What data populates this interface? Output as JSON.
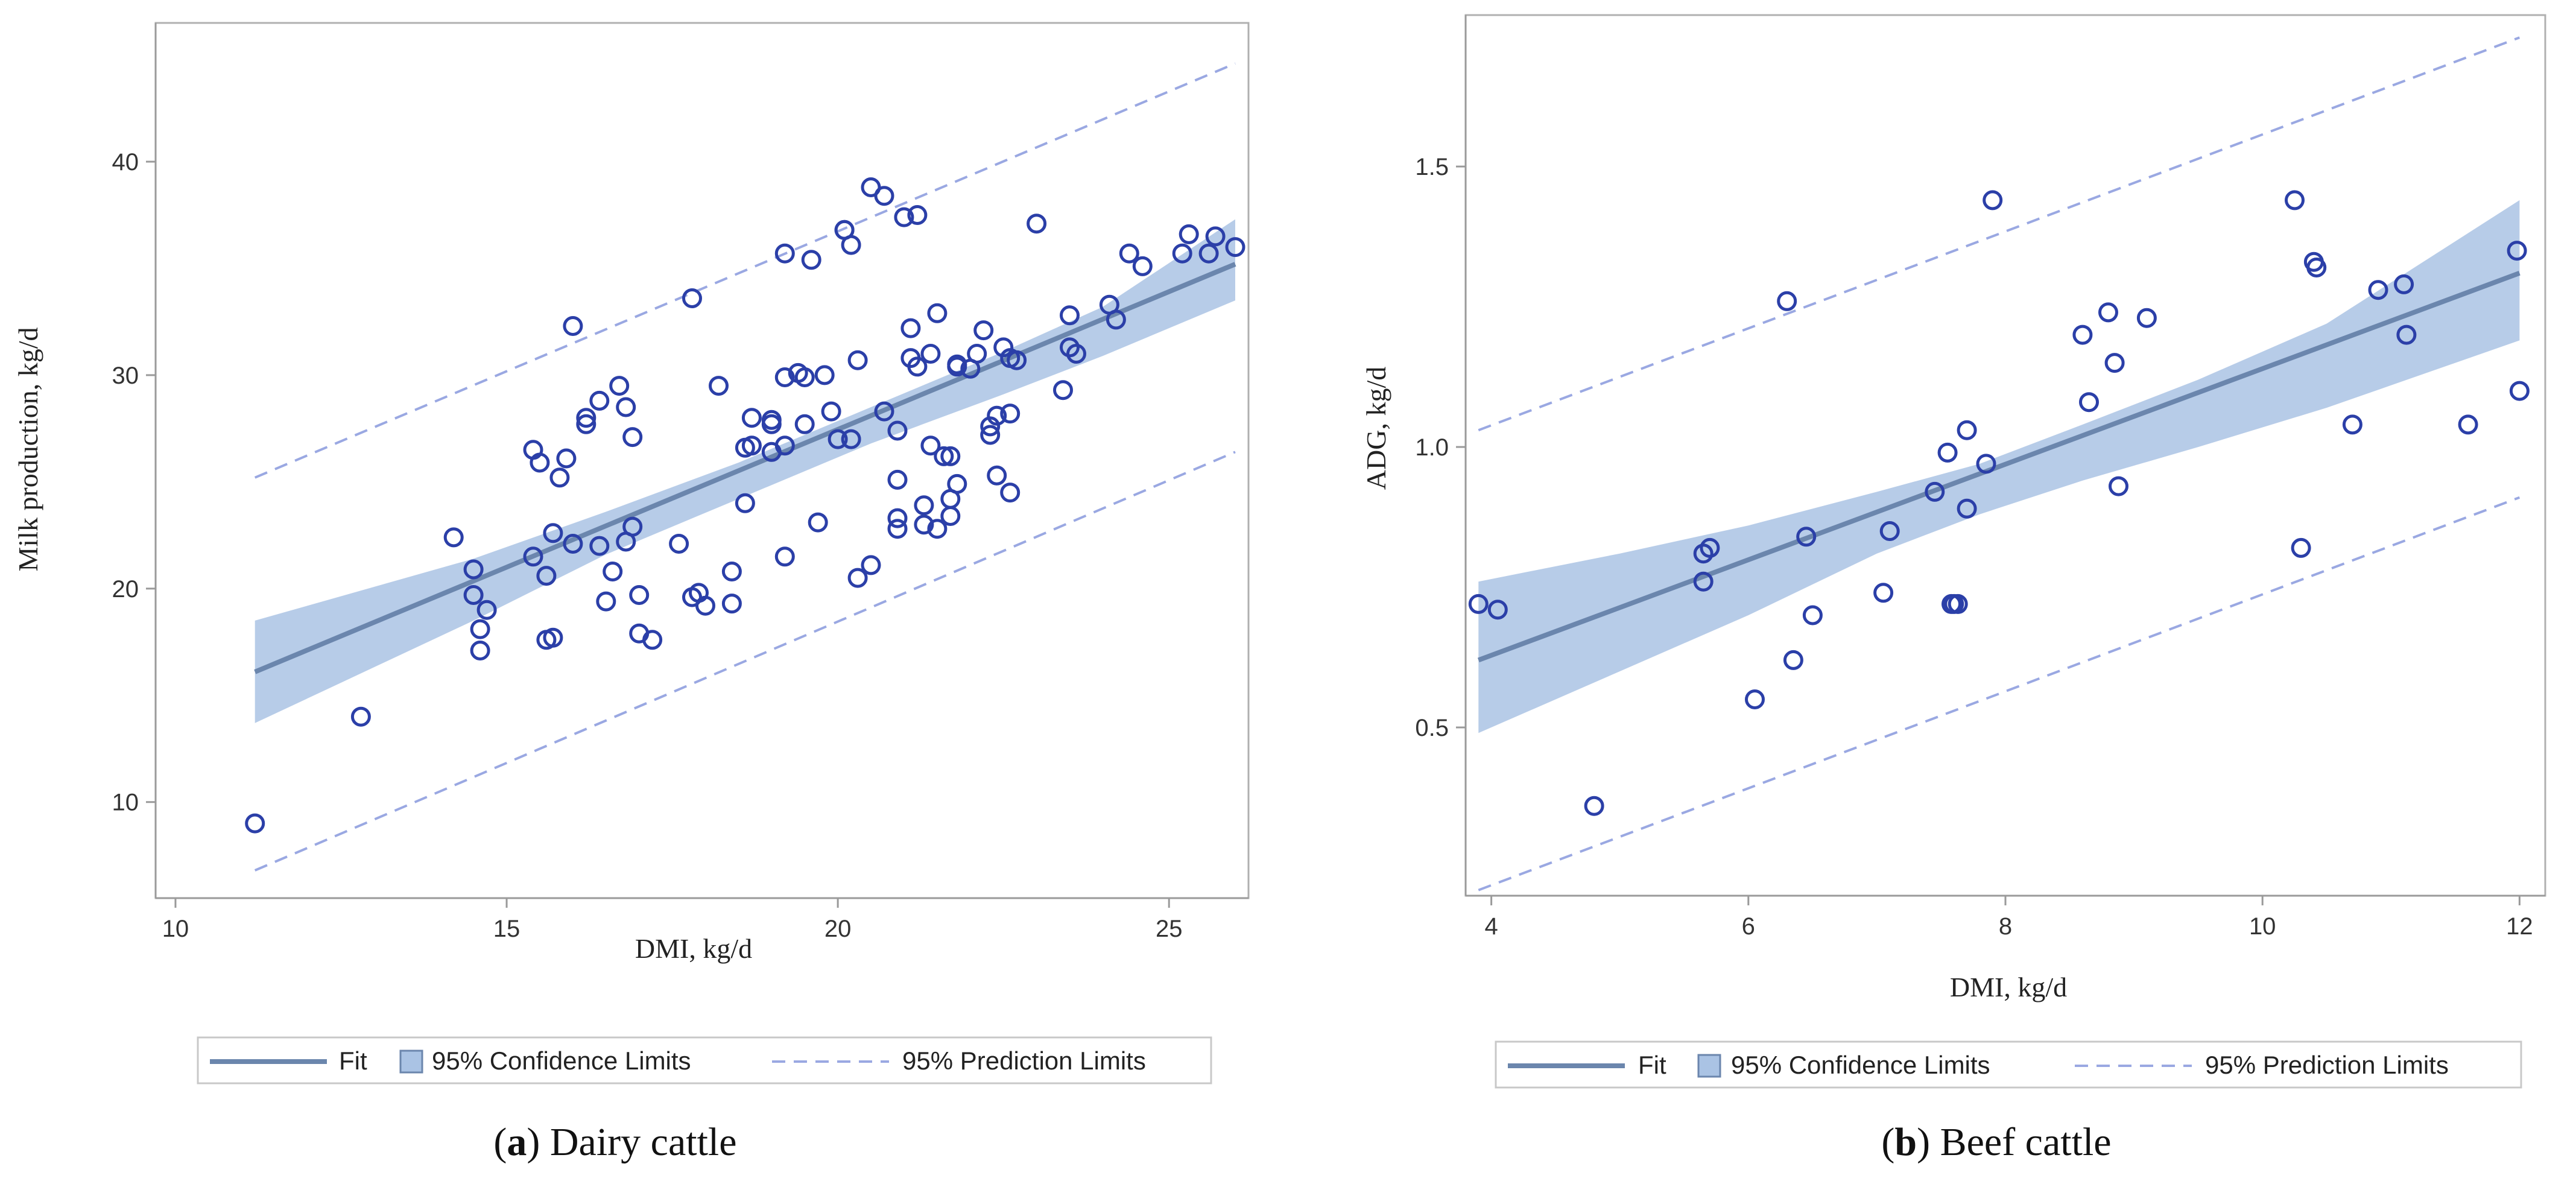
{
  "colors": {
    "points": "#2b3fa8",
    "fit": "#6b86ad",
    "confidence_band": "#aac3e4",
    "prediction": "#9aa8e2"
  },
  "panels": [
    {
      "caption_letter": "a",
      "caption_text": " Dairy cattle",
      "legend": {
        "fit": "Fit",
        "confidence": "95% Confidence Limits",
        "prediction": "95% Prediction Limits"
      }
    },
    {
      "caption_letter": "b",
      "caption_text": " Beef cattle",
      "legend": {
        "fit": "Fit",
        "confidence": "95% Confidence Limits",
        "prediction": "95% Prediction Limits"
      }
    }
  ],
  "chart_data": [
    {
      "type": "scatter",
      "title": "Dairy cattle",
      "xlabel": "DMI, kg/d",
      "ylabel": "Milk production, kg/d",
      "xlim": [
        9.7,
        26.2
      ],
      "ylim": [
        5.5,
        46.5
      ],
      "xticks": [
        10,
        15,
        20,
        25
      ],
      "yticks": [
        10,
        20,
        30,
        40
      ],
      "grid": false,
      "legend_position": "bottom",
      "fit": {
        "x": [
          11.2,
          26.0
        ],
        "y": [
          16.1,
          35.2
        ]
      },
      "confidence_band": {
        "x": [
          11.2,
          14.5,
          16.5,
          18.5,
          20.5,
          22.5,
          24.0,
          26.0
        ],
        "lower": [
          13.7,
          18.5,
          21.6,
          24.2,
          26.8,
          29.1,
          30.9,
          33.5
        ],
        "upper": [
          18.5,
          21.4,
          23.6,
          25.9,
          28.5,
          31.1,
          33.2,
          37.3
        ]
      },
      "prediction_upper": {
        "x": [
          11.2,
          26.0
        ],
        "y": [
          25.2,
          44.6
        ]
      },
      "prediction_lower": {
        "x": [
          11.2,
          26.0
        ],
        "y": [
          6.8,
          26.4
        ]
      },
      "points": {
        "x": [
          11.2,
          12.8,
          14.2,
          14.5,
          14.5,
          14.6,
          14.6,
          14.7,
          15.4,
          15.4,
          15.5,
          15.6,
          15.6,
          15.7,
          15.7,
          15.8,
          15.9,
          16.0,
          16.0,
          16.2,
          16.2,
          16.4,
          16.4,
          16.5,
          16.6,
          16.7,
          16.8,
          16.8,
          16.9,
          16.9,
          17.0,
          17.0,
          17.2,
          17.6,
          17.8,
          17.8,
          17.9,
          18.0,
          18.2,
          18.4,
          18.4,
          18.6,
          18.6,
          18.7,
          18.7,
          19.0,
          19.0,
          19.0,
          19.2,
          19.2,
          19.2,
          19.2,
          19.4,
          19.5,
          19.5,
          19.6,
          19.7,
          19.8,
          19.9,
          20.0,
          20.1,
          20.1,
          20.2,
          20.2,
          20.3,
          20.3,
          20.5,
          20.5,
          20.7,
          20.7,
          20.9,
          20.9,
          20.9,
          20.9,
          21.0,
          21.1,
          21.1,
          21.2,
          21.2,
          21.3,
          21.3,
          21.4,
          21.4,
          21.5,
          21.5,
          21.6,
          21.7,
          21.7,
          21.7,
          21.8,
          21.8,
          21.8,
          22.0,
          22.1,
          22.2,
          22.3,
          22.3,
          22.4,
          22.4,
          22.5,
          22.6,
          22.6,
          22.6,
          22.7,
          23.0,
          23.4,
          23.5,
          23.5,
          23.6,
          24.1,
          24.2,
          24.4,
          24.6,
          25.2,
          25.3,
          25.6,
          25.7,
          26.0
        ],
        "y": [
          9.0,
          14.0,
          22.4,
          20.9,
          19.7,
          18.1,
          17.1,
          19.0,
          26.5,
          21.5,
          25.9,
          20.6,
          17.6,
          17.7,
          22.6,
          25.2,
          26.1,
          22.1,
          32.3,
          28.0,
          27.7,
          28.8,
          22.0,
          19.4,
          20.8,
          29.5,
          28.5,
          22.2,
          27.1,
          22.9,
          19.7,
          17.9,
          17.6,
          22.1,
          33.6,
          19.6,
          19.8,
          19.2,
          29.5,
          19.3,
          20.8,
          24.0,
          26.6,
          26.7,
          28.0,
          27.9,
          27.7,
          26.4,
          35.7,
          29.9,
          21.5,
          26.7,
          30.1,
          29.9,
          27.7,
          35.4,
          23.1,
          30.0,
          28.3,
          27.0,
          36.8,
          36.8,
          36.1,
          27.0,
          30.7,
          20.5,
          21.1,
          38.8,
          38.4,
          28.3,
          27.4,
          25.1,
          23.3,
          22.8,
          37.4,
          30.8,
          32.2,
          30.4,
          37.5,
          23.9,
          23.0,
          26.7,
          31.0,
          22.8,
          32.9,
          26.2,
          26.2,
          24.2,
          23.4,
          30.5,
          24.9,
          30.4,
          30.3,
          31.0,
          32.1,
          27.6,
          27.2,
          25.3,
          28.1,
          31.3,
          30.8,
          28.2,
          24.5,
          30.7,
          37.1,
          29.3,
          31.3,
          32.8,
          31.0,
          33.3,
          32.6,
          35.7,
          35.1,
          35.7,
          36.6,
          35.7,
          36.5,
          36.0
        ]
      }
    },
    {
      "type": "scatter",
      "title": "Beef cattle",
      "xlabel": "DMI, kg/d",
      "ylabel": "ADG, kg/d",
      "xlim": [
        3.8,
        12.2
      ],
      "ylim": [
        0.2,
        1.77
      ],
      "xticks": [
        4,
        6,
        8,
        10,
        12
      ],
      "yticks": [
        0.5,
        1.0,
        1.5
      ],
      "grid": false,
      "legend_position": "bottom",
      "fit": {
        "x": [
          3.9,
          12.0
        ],
        "y": [
          0.62,
          1.31
        ]
      },
      "confidence_band": {
        "x": [
          3.9,
          5.0,
          6.0,
          7.0,
          7.8,
          8.6,
          9.5,
          10.5,
          12.0
        ],
        "lower": [
          0.49,
          0.6,
          0.7,
          0.81,
          0.88,
          0.94,
          1.0,
          1.07,
          1.19
        ],
        "upper": [
          0.76,
          0.81,
          0.86,
          0.92,
          0.97,
          1.04,
          1.12,
          1.22,
          1.44
        ]
      },
      "prediction_upper": {
        "x": [
          3.9,
          12.0
        ],
        "y": [
          1.03,
          1.73
        ]
      },
      "prediction_lower": {
        "x": [
          3.9,
          12.0
        ],
        "y": [
          0.21,
          0.91
        ]
      },
      "points": {
        "x": [
          3.9,
          4.05,
          4.8,
          5.65,
          5.65,
          5.7,
          6.05,
          6.3,
          6.35,
          6.45,
          6.5,
          7.05,
          7.1,
          7.45,
          7.55,
          7.58,
          7.6,
          7.63,
          7.7,
          7.7,
          7.85,
          7.9,
          8.6,
          8.65,
          8.8,
          8.85,
          8.88,
          9.1,
          10.25,
          10.3,
          10.4,
          10.42,
          10.7,
          10.9,
          11.1,
          11.12,
          11.6,
          11.98,
          12.0
        ],
        "y": [
          0.72,
          0.71,
          0.36,
          0.76,
          0.81,
          0.82,
          0.55,
          1.26,
          0.62,
          0.84,
          0.7,
          0.74,
          0.85,
          0.92,
          0.99,
          0.72,
          0.72,
          0.72,
          0.89,
          1.03,
          0.97,
          1.44,
          1.2,
          1.08,
          1.24,
          1.15,
          0.93,
          1.23,
          1.44,
          0.82,
          1.33,
          1.32,
          1.04,
          1.28,
          1.29,
          1.2,
          1.04,
          1.35,
          1.1
        ]
      }
    }
  ]
}
